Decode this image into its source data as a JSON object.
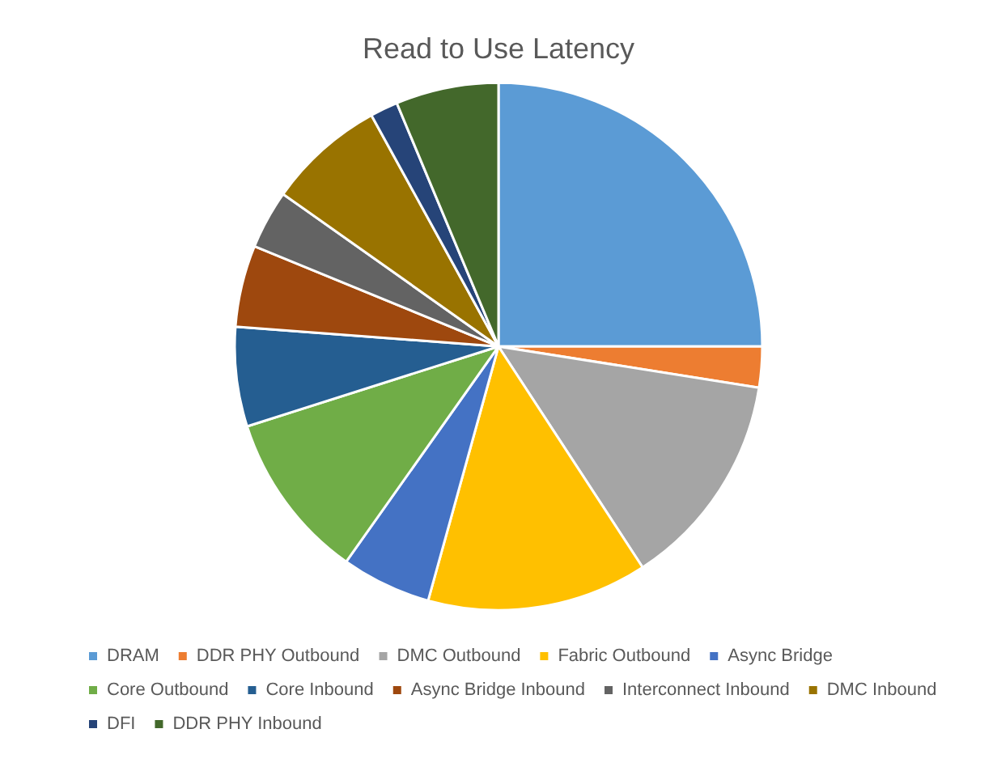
{
  "chart_data": {
    "type": "pie",
    "title": "Read to Use Latency",
    "categories": [
      "DRAM",
      "DDR PHY Outbound",
      "DMC Outbound",
      "Fabric Outbound",
      "Async Bridge",
      "Core Outbound",
      "Core Inbound",
      "Async Bridge Inbound",
      "Interconnect Inbound",
      "DMC Inbound",
      "DFI",
      "DDR PHY Inbound"
    ],
    "values": [
      25,
      2.5,
      13.3,
      13.5,
      5.5,
      10.3,
      6.1,
      5,
      3.6,
      7.2,
      1.7,
      6.3
    ],
    "colors": [
      "#5b9bd5",
      "#ed7d31",
      "#a5a5a5",
      "#ffc000",
      "#4472c4",
      "#70ad47",
      "#255e91",
      "#9e480e",
      "#636363",
      "#997300",
      "#264478",
      "#43682b"
    ],
    "legend": "bottom"
  }
}
